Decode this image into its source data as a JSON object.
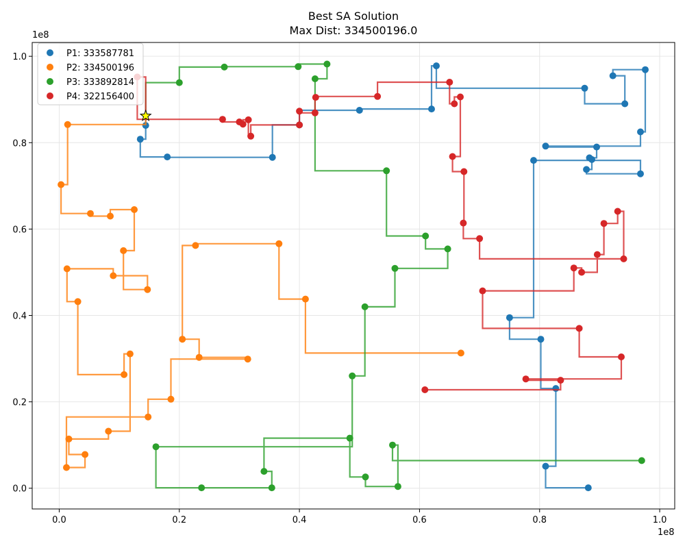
{
  "chart_data": {
    "type": "scatter",
    "title": "Best SA Solution",
    "subtitle": "Max Dist: 334500196.0",
    "x_offset_label": "1e8",
    "y_offset_label": "1e8",
    "xlim": [
      -4.5,
      102.5
    ],
    "ylim": [
      -4.8,
      103.2
    ],
    "x_ticks": [
      0,
      20,
      40,
      60,
      80,
      100
    ],
    "x_tick_labels": [
      "0.0",
      "0.2",
      "0.4",
      "0.6",
      "0.8",
      "1.0"
    ],
    "y_ticks": [
      0,
      20,
      40,
      60,
      80,
      100
    ],
    "y_tick_labels": [
      "0.0",
      "0.2",
      "0.4",
      "0.6",
      "0.8",
      "1.0"
    ],
    "grid": true,
    "legend_position": "top-left",
    "path_style": "manhattan-step",
    "depot": {
      "x": 14.4,
      "y": 86.2,
      "marker": "star",
      "color": "#ffff00"
    },
    "series": [
      {
        "name": "P1: 333587781",
        "color": "#1f77b4",
        "points": [
          [
            14.4,
            86.2
          ],
          [
            14.4,
            84.0
          ],
          [
            13.5,
            80.8
          ],
          [
            18.0,
            76.7
          ],
          [
            35.5,
            76.6
          ],
          [
            40.0,
            84.1
          ],
          [
            50.0,
            87.5
          ],
          [
            62.0,
            87.8
          ],
          [
            62.8,
            97.8
          ],
          [
            87.5,
            92.6
          ],
          [
            94.2,
            89.0
          ],
          [
            92.2,
            95.5
          ],
          [
            97.6,
            96.9
          ],
          [
            96.8,
            82.5
          ],
          [
            81.0,
            79.2
          ],
          [
            89.5,
            79.0
          ],
          [
            88.3,
            76.5
          ],
          [
            88.7,
            76.1
          ],
          [
            87.8,
            73.8
          ],
          [
            96.8,
            72.8
          ],
          [
            79.0,
            75.9
          ],
          [
            75.0,
            39.5
          ],
          [
            80.2,
            34.5
          ],
          [
            82.7,
            23.1
          ],
          [
            81.0,
            5.1
          ],
          [
            88.1,
            0.1
          ]
        ]
      },
      {
        "name": "P2: 334500196",
        "color": "#ff7f0e",
        "points": [
          [
            14.4,
            86.2
          ],
          [
            1.4,
            84.2
          ],
          [
            0.3,
            70.3
          ],
          [
            5.2,
            63.6
          ],
          [
            8.5,
            63.0
          ],
          [
            12.5,
            64.5
          ],
          [
            10.7,
            55.0
          ],
          [
            14.7,
            46.0
          ],
          [
            9.0,
            49.2
          ],
          [
            1.3,
            50.8
          ],
          [
            3.1,
            43.2
          ],
          [
            10.8,
            26.3
          ],
          [
            11.8,
            31.1
          ],
          [
            8.2,
            13.2
          ],
          [
            1.6,
            11.4
          ],
          [
            4.3,
            7.8
          ],
          [
            1.2,
            4.8
          ],
          [
            14.8,
            16.5
          ],
          [
            18.6,
            20.6
          ],
          [
            31.4,
            29.9
          ],
          [
            23.3,
            30.3
          ],
          [
            20.5,
            34.5
          ],
          [
            22.7,
            56.2
          ],
          [
            36.6,
            56.6
          ],
          [
            41.0,
            43.8
          ],
          [
            66.9,
            31.3
          ]
        ]
      },
      {
        "name": "P3: 333892814",
        "color": "#2ca02c",
        "points": [
          [
            14.4,
            86.2
          ],
          [
            20.0,
            93.9
          ],
          [
            27.5,
            97.5
          ],
          [
            39.8,
            97.6
          ],
          [
            44.6,
            98.2
          ],
          [
            42.6,
            94.8
          ],
          [
            54.5,
            73.5
          ],
          [
            61.0,
            58.4
          ],
          [
            64.7,
            55.4
          ],
          [
            55.9,
            50.9
          ],
          [
            50.9,
            42.0
          ],
          [
            48.8,
            26.0
          ],
          [
            16.1,
            9.6
          ],
          [
            23.7,
            0.1
          ],
          [
            35.4,
            0.1
          ],
          [
            34.1,
            3.9
          ],
          [
            48.4,
            11.6
          ],
          [
            51.0,
            2.6
          ],
          [
            56.4,
            0.4
          ],
          [
            55.5,
            10.0
          ],
          [
            97.0,
            6.4
          ]
        ]
      },
      {
        "name": "P4: 322156400",
        "color": "#d62728",
        "points": [
          [
            14.4,
            86.2
          ],
          [
            13.0,
            95.2
          ],
          [
            27.2,
            85.4
          ],
          [
            30.0,
            84.8
          ],
          [
            30.6,
            84.3
          ],
          [
            31.5,
            85.3
          ],
          [
            31.9,
            81.5
          ],
          [
            40.0,
            84.1
          ],
          [
            40.0,
            87.3
          ],
          [
            42.6,
            86.9
          ],
          [
            42.7,
            90.5
          ],
          [
            53.0,
            90.7
          ],
          [
            65.0,
            94.0
          ],
          [
            65.8,
            89.0
          ],
          [
            66.8,
            90.6
          ],
          [
            65.5,
            76.8
          ],
          [
            67.4,
            73.3
          ],
          [
            67.3,
            61.4
          ],
          [
            70.0,
            57.8
          ],
          [
            94.0,
            53.1
          ],
          [
            93.0,
            64.1
          ],
          [
            90.7,
            61.3
          ],
          [
            89.6,
            54.1
          ],
          [
            87.0,
            50.0
          ],
          [
            85.7,
            51.0
          ],
          [
            70.5,
            45.7
          ],
          [
            86.6,
            37.0
          ],
          [
            93.6,
            30.4
          ],
          [
            77.7,
            25.3
          ],
          [
            83.5,
            25.0
          ],
          [
            60.9,
            22.8
          ]
        ]
      }
    ]
  }
}
